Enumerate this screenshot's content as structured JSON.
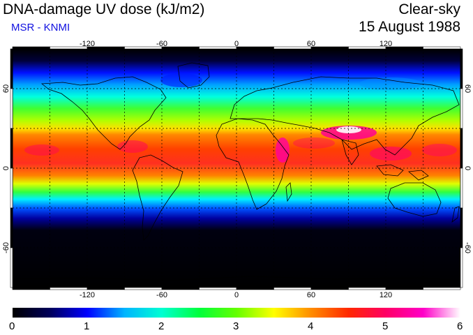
{
  "header": {
    "title": "DNA-damage UV dose (kJ/m2)",
    "subtitle": "MSR - KNMI",
    "condition": "Clear-sky",
    "date": "15 August 1988"
  },
  "map": {
    "lon_ticks": [
      "-120",
      "-60",
      "0",
      "60",
      "120"
    ],
    "lat_ticks_left": [
      "60",
      "0",
      "-60"
    ],
    "lat_ticks_right": [
      "60",
      "0",
      "-60"
    ],
    "gridlines": "dashed every 30 degrees",
    "equator_band_peak_color": "#ff1493",
    "ocean_land_outline_color": "#000000"
  },
  "colorbar": {
    "min": 0,
    "max": 6,
    "labels": [
      "0",
      "1",
      "2",
      "3",
      "4",
      "5",
      "6"
    ],
    "colors": [
      "#000000",
      "#00005a",
      "#0000ff",
      "#00b4ff",
      "#00ffd2",
      "#00ff3c",
      "#64ff00",
      "#ffff00",
      "#ff8c00",
      "#ff2800",
      "#ff0064",
      "#ff00c8",
      "#ffffff"
    ]
  }
}
